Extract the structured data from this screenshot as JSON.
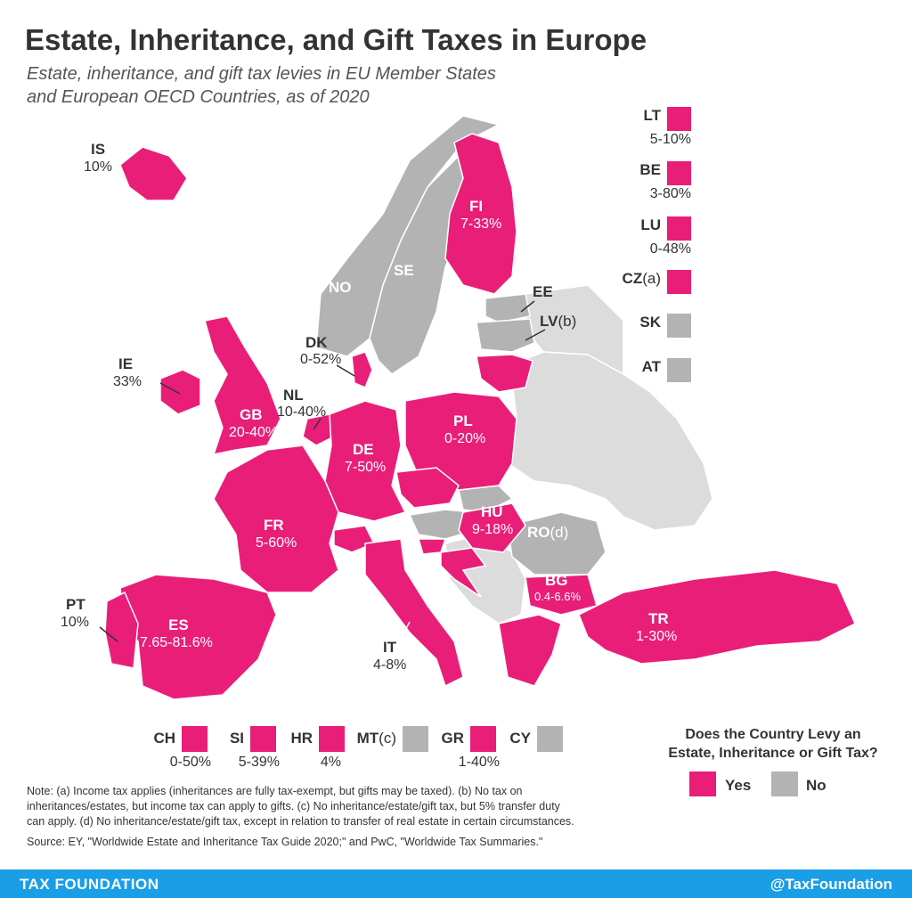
{
  "title": "Estate, Inheritance, and Gift Taxes in Europe",
  "subtitle_line1": "Estate, inheritance, and gift tax levies in EU Member States",
  "subtitle_line2": "and European OECD Countries, as of 2020",
  "colors": {
    "yes": "#e91e78",
    "no": "#b3b3b3",
    "non_oecd": "#dcdcdc",
    "footer": "#1a9ee6"
  },
  "map_labels": {
    "IS": {
      "code": "IS",
      "rate": "10%"
    },
    "NO": {
      "code": "NO"
    },
    "SE": {
      "code": "SE"
    },
    "FI": {
      "code": "FI",
      "rate": "7-33%"
    },
    "EE": {
      "code": "EE"
    },
    "LV": {
      "code": "LV",
      "note": "(b)"
    },
    "DK": {
      "code": "DK",
      "rate": "0-52%"
    },
    "IE": {
      "code": "IE",
      "rate": "33%"
    },
    "NL": {
      "code": "NL",
      "rate": "10-40%"
    },
    "GB": {
      "code": "GB",
      "rate": "20-40%"
    },
    "DE": {
      "code": "DE",
      "rate": "7-50%"
    },
    "PL": {
      "code": "PL",
      "rate": "0-20%"
    },
    "FR": {
      "code": "FR",
      "rate": "5-60%"
    },
    "HU": {
      "code": "HU",
      "rate": "9-18%"
    },
    "RO": {
      "code": "RO",
      "note": "(d)"
    },
    "BG": {
      "code": "BG",
      "rate": "0.4-6.6%"
    },
    "PT": {
      "code": "PT",
      "rate": "10%"
    },
    "ES": {
      "code": "ES",
      "rate": "7.65-81.6%"
    },
    "IT": {
      "code": "IT",
      "rate": "4-8%"
    },
    "TR": {
      "code": "TR",
      "rate": "1-30%"
    }
  },
  "side_legend": [
    {
      "code": "LT",
      "note": "",
      "rate": "5-10%",
      "levy": "yes"
    },
    {
      "code": "BE",
      "note": "",
      "rate": "3-80%",
      "levy": "yes"
    },
    {
      "code": "LU",
      "note": "",
      "rate": "0-48%",
      "levy": "yes"
    },
    {
      "code": "CZ",
      "note": "(a)",
      "rate": "",
      "levy": "yes"
    },
    {
      "code": "SK",
      "note": "",
      "rate": "",
      "levy": "no"
    },
    {
      "code": "AT",
      "note": "",
      "rate": "",
      "levy": "no"
    }
  ],
  "bottom_legend": [
    {
      "code": "CH",
      "note": "",
      "rate": "0-50%",
      "levy": "yes"
    },
    {
      "code": "SI",
      "note": "",
      "rate": "5-39%",
      "levy": "yes"
    },
    {
      "code": "HR",
      "note": "",
      "rate": "4%",
      "levy": "yes"
    },
    {
      "code": "MT",
      "note": "(c)",
      "rate": "",
      "levy": "no"
    },
    {
      "code": "GR",
      "note": "",
      "rate": "1-40%",
      "levy": "yes"
    },
    {
      "code": "CY",
      "note": "",
      "rate": "",
      "levy": "no"
    }
  ],
  "legend": {
    "question_line1": "Does the Country Levy an",
    "question_line2": "Estate, Inheritance or Gift Tax?",
    "yes": "Yes",
    "no": "No"
  },
  "note_line1": "Note: (a) Income tax applies (inheritances are fully tax-exempt, but gifts may be taxed). (b) No tax on",
  "note_line2": "inheritances/estates, but income tax can apply to gifts. (c) No inheritance/estate/gift tax, but 5% transfer duty",
  "note_line3": "can apply. (d) No inheritance/estate/gift tax, except in relation to transfer of real estate in certain circumstances.",
  "source": "Source: EY, \"Worldwide Estate and Inheritance Tax Guide 2020;\" and PwC, \"Worldwide Tax Summaries.\"",
  "footer": {
    "left": "TAX FOUNDATION",
    "right": "@TaxFoundation"
  }
}
